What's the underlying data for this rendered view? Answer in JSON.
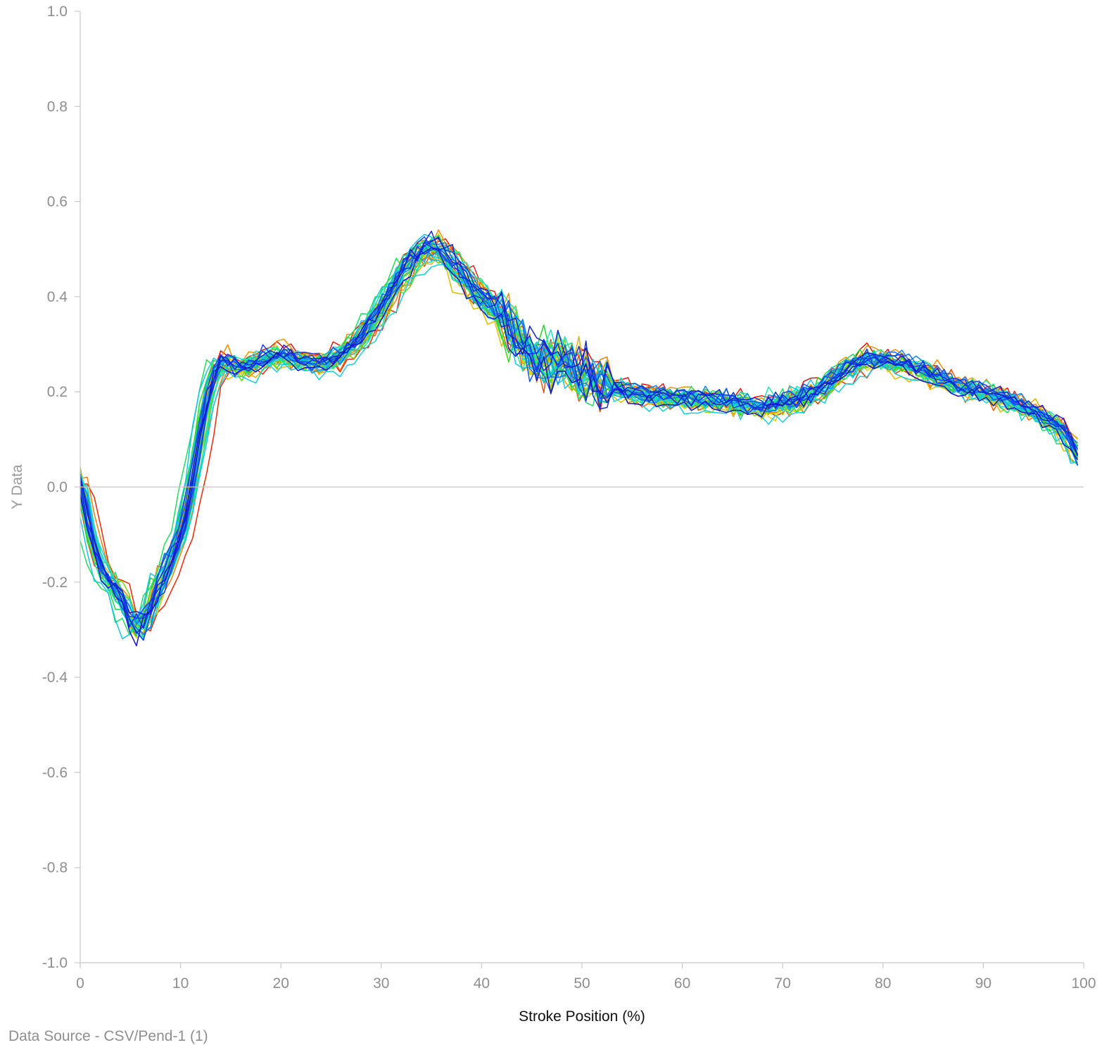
{
  "chart_data": {
    "type": "line",
    "xlabel": "Stroke Position (%)",
    "ylabel": "Y Data",
    "xlim": [
      0,
      100
    ],
    "ylim": [
      -1.0,
      1.0
    ],
    "x_ticks": [
      "0",
      "10",
      "20",
      "30",
      "40",
      "50",
      "60",
      "70",
      "80",
      "90",
      "100"
    ],
    "y_ticks": [
      "1.0",
      "0.8",
      "0.6",
      "0.4",
      "0.2",
      "0.0",
      "-0.2",
      "-0.4",
      "-0.6",
      "-0.8",
      "-1.0"
    ],
    "grid": false,
    "zero_line": true,
    "legend": "none",
    "series_count": 40,
    "color_scale": [
      "#e8120a",
      "#f08a00",
      "#d8d800",
      "#22d222",
      "#1ee8b4",
      "#12c8e8",
      "#1450f0",
      "#1414c8"
    ],
    "mean_curve": {
      "x": [
        0,
        1,
        2,
        3,
        4,
        5,
        6,
        7,
        8,
        9,
        10,
        11,
        12,
        13,
        14,
        15,
        16,
        18,
        20,
        22,
        24,
        26,
        28,
        30,
        32,
        34,
        35,
        36,
        38,
        40,
        42,
        43,
        44,
        45,
        46,
        47,
        48,
        49,
        50,
        52,
        55,
        58,
        60,
        65,
        68,
        70,
        72,
        74,
        76,
        78,
        80,
        82,
        85,
        88,
        90,
        92,
        94,
        96,
        98,
        100
      ],
      "y": [
        0.02,
        -0.1,
        -0.17,
        -0.2,
        -0.23,
        -0.28,
        -0.3,
        -0.25,
        -0.2,
        -0.15,
        -0.1,
        0.0,
        0.12,
        0.22,
        0.27,
        0.26,
        0.25,
        0.27,
        0.28,
        0.27,
        0.26,
        0.28,
        0.32,
        0.38,
        0.45,
        0.5,
        0.51,
        0.5,
        0.45,
        0.4,
        0.37,
        0.34,
        0.3,
        0.27,
        0.26,
        0.27,
        0.28,
        0.25,
        0.24,
        0.22,
        0.2,
        0.19,
        0.19,
        0.18,
        0.17,
        0.18,
        0.19,
        0.21,
        0.25,
        0.27,
        0.27,
        0.26,
        0.24,
        0.21,
        0.2,
        0.19,
        0.17,
        0.15,
        0.12,
        0.05
      ]
    }
  },
  "footer": {
    "source": "Data Source - CSV/Pend-1 (1)"
  }
}
